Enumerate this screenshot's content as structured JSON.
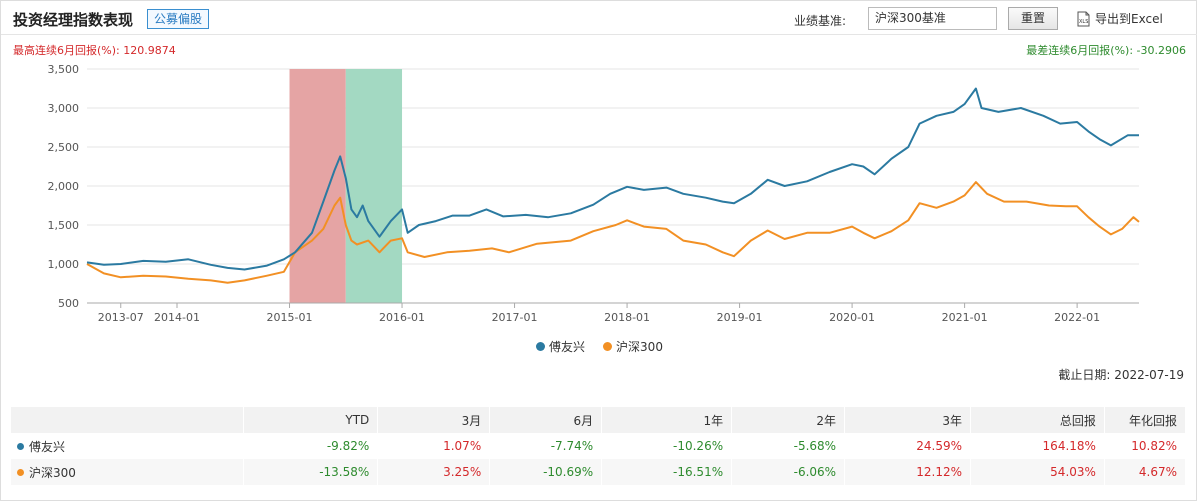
{
  "header": {
    "title": "投资经理指数表现",
    "tag": "公募偏股",
    "benchmark_label": "业绩基准:",
    "benchmark_value": "沪深300基准",
    "reset_label": "重置",
    "export_label": "导出到Excel"
  },
  "drawdown": {
    "max_text": "最高连续6月回报(%): 120.9874",
    "min_text": "最差连续6月回报(%): -30.2906"
  },
  "colors": {
    "series1": "#2b7aa1",
    "series2": "#f29024",
    "highlight_red": "#e5a4a4",
    "highlight_green": "#a3d9c2"
  },
  "chart_data": {
    "type": "line",
    "ylim": [
      500,
      3500
    ],
    "yticks": [
      500,
      1000,
      1500,
      2000,
      2500,
      3000,
      3500
    ],
    "ytick_labels": [
      "500",
      "1,000",
      "1,500",
      "2,000",
      "2,500",
      "3,000",
      "3,500"
    ],
    "xlim": [
      2013.2,
      2022.55
    ],
    "xticks": [
      2013.5,
      2014.0,
      2015.0,
      2016.0,
      2017.0,
      2018.0,
      2019.0,
      2020.0,
      2021.0,
      2022.0
    ],
    "xtick_labels": [
      "2013-07",
      "2014-01",
      "2015-01",
      "2016-01",
      "2017-01",
      "2018-01",
      "2019-01",
      "2020-01",
      "2021-01",
      "2022-01"
    ],
    "highlights": [
      {
        "kind": "max",
        "x0": 2015.0,
        "x1": 2015.5
      },
      {
        "kind": "min",
        "x0": 2015.5,
        "x1": 2016.0
      }
    ],
    "series": [
      {
        "name": "傅友兴",
        "points": [
          [
            2013.2,
            1020
          ],
          [
            2013.35,
            990
          ],
          [
            2013.5,
            1000
          ],
          [
            2013.7,
            1040
          ],
          [
            2013.9,
            1030
          ],
          [
            2014.1,
            1060
          ],
          [
            2014.3,
            990
          ],
          [
            2014.45,
            950
          ],
          [
            2014.6,
            930
          ],
          [
            2014.8,
            980
          ],
          [
            2014.95,
            1060
          ],
          [
            2015.05,
            1150
          ],
          [
            2015.2,
            1400
          ],
          [
            2015.3,
            1800
          ],
          [
            2015.4,
            2200
          ],
          [
            2015.45,
            2380
          ],
          [
            2015.5,
            2100
          ],
          [
            2015.55,
            1700
          ],
          [
            2015.6,
            1600
          ],
          [
            2015.65,
            1750
          ],
          [
            2015.7,
            1550
          ],
          [
            2015.8,
            1350
          ],
          [
            2015.9,
            1550
          ],
          [
            2016.0,
            1700
          ],
          [
            2016.05,
            1400
          ],
          [
            2016.15,
            1500
          ],
          [
            2016.3,
            1550
          ],
          [
            2016.45,
            1620
          ],
          [
            2016.6,
            1620
          ],
          [
            2016.75,
            1700
          ],
          [
            2016.9,
            1610
          ],
          [
            2017.1,
            1630
          ],
          [
            2017.3,
            1600
          ],
          [
            2017.5,
            1650
          ],
          [
            2017.7,
            1760
          ],
          [
            2017.85,
            1900
          ],
          [
            2018.0,
            1990
          ],
          [
            2018.15,
            1950
          ],
          [
            2018.35,
            1980
          ],
          [
            2018.5,
            1900
          ],
          [
            2018.7,
            1850
          ],
          [
            2018.85,
            1800
          ],
          [
            2018.95,
            1780
          ],
          [
            2019.1,
            1900
          ],
          [
            2019.25,
            2080
          ],
          [
            2019.4,
            2000
          ],
          [
            2019.6,
            2060
          ],
          [
            2019.8,
            2180
          ],
          [
            2020.0,
            2280
          ],
          [
            2020.1,
            2250
          ],
          [
            2020.2,
            2150
          ],
          [
            2020.35,
            2350
          ],
          [
            2020.5,
            2500
          ],
          [
            2020.6,
            2800
          ],
          [
            2020.75,
            2900
          ],
          [
            2020.9,
            2950
          ],
          [
            2021.0,
            3050
          ],
          [
            2021.1,
            3250
          ],
          [
            2021.15,
            3000
          ],
          [
            2021.3,
            2950
          ],
          [
            2021.5,
            3000
          ],
          [
            2021.7,
            2900
          ],
          [
            2021.85,
            2800
          ],
          [
            2022.0,
            2820
          ],
          [
            2022.1,
            2700
          ],
          [
            2022.2,
            2600
          ],
          [
            2022.3,
            2520
          ],
          [
            2022.45,
            2650
          ],
          [
            2022.55,
            2650
          ]
        ]
      },
      {
        "name": "沪深300",
        "points": [
          [
            2013.2,
            1000
          ],
          [
            2013.35,
            880
          ],
          [
            2013.5,
            830
          ],
          [
            2013.7,
            850
          ],
          [
            2013.9,
            840
          ],
          [
            2014.1,
            810
          ],
          [
            2014.3,
            790
          ],
          [
            2014.45,
            760
          ],
          [
            2014.6,
            790
          ],
          [
            2014.8,
            850
          ],
          [
            2014.95,
            900
          ],
          [
            2015.05,
            1150
          ],
          [
            2015.2,
            1300
          ],
          [
            2015.3,
            1450
          ],
          [
            2015.4,
            1750
          ],
          [
            2015.45,
            1850
          ],
          [
            2015.5,
            1500
          ],
          [
            2015.55,
            1300
          ],
          [
            2015.6,
            1250
          ],
          [
            2015.7,
            1300
          ],
          [
            2015.8,
            1150
          ],
          [
            2015.9,
            1300
          ],
          [
            2016.0,
            1330
          ],
          [
            2016.05,
            1150
          ],
          [
            2016.2,
            1090
          ],
          [
            2016.4,
            1150
          ],
          [
            2016.6,
            1170
          ],
          [
            2016.8,
            1200
          ],
          [
            2016.95,
            1150
          ],
          [
            2017.2,
            1260
          ],
          [
            2017.5,
            1300
          ],
          [
            2017.7,
            1420
          ],
          [
            2017.9,
            1500
          ],
          [
            2018.0,
            1560
          ],
          [
            2018.15,
            1480
          ],
          [
            2018.35,
            1450
          ],
          [
            2018.5,
            1300
          ],
          [
            2018.7,
            1250
          ],
          [
            2018.85,
            1150
          ],
          [
            2018.95,
            1100
          ],
          [
            2019.1,
            1300
          ],
          [
            2019.25,
            1430
          ],
          [
            2019.4,
            1320
          ],
          [
            2019.6,
            1400
          ],
          [
            2019.8,
            1400
          ],
          [
            2020.0,
            1480
          ],
          [
            2020.1,
            1400
          ],
          [
            2020.2,
            1330
          ],
          [
            2020.35,
            1420
          ],
          [
            2020.5,
            1560
          ],
          [
            2020.6,
            1780
          ],
          [
            2020.75,
            1720
          ],
          [
            2020.9,
            1800
          ],
          [
            2021.0,
            1880
          ],
          [
            2021.1,
            2050
          ],
          [
            2021.2,
            1900
          ],
          [
            2021.35,
            1800
          ],
          [
            2021.55,
            1800
          ],
          [
            2021.75,
            1750
          ],
          [
            2021.9,
            1740
          ],
          [
            2022.0,
            1740
          ],
          [
            2022.1,
            1600
          ],
          [
            2022.2,
            1480
          ],
          [
            2022.3,
            1380
          ],
          [
            2022.4,
            1450
          ],
          [
            2022.5,
            1600
          ],
          [
            2022.55,
            1540
          ]
        ]
      }
    ]
  },
  "legend": [
    "傅友兴",
    "沪深300"
  ],
  "cutoff_date": "截止日期: 2022-07-19",
  "table": {
    "headers": [
      "",
      "YTD",
      "3月",
      "6月",
      "1年",
      "2年",
      "3年",
      "总回报",
      "年化回报"
    ],
    "rows": [
      {
        "name": "傅友兴",
        "values": [
          "-9.82%",
          "1.07%",
          "-7.74%",
          "-10.26%",
          "-5.68%",
          "24.59%",
          "164.18%",
          "10.82%"
        ]
      },
      {
        "name": "沪深300",
        "values": [
          "-13.58%",
          "3.25%",
          "-10.69%",
          "-16.51%",
          "-6.06%",
          "12.12%",
          "54.03%",
          "4.67%"
        ]
      }
    ]
  }
}
